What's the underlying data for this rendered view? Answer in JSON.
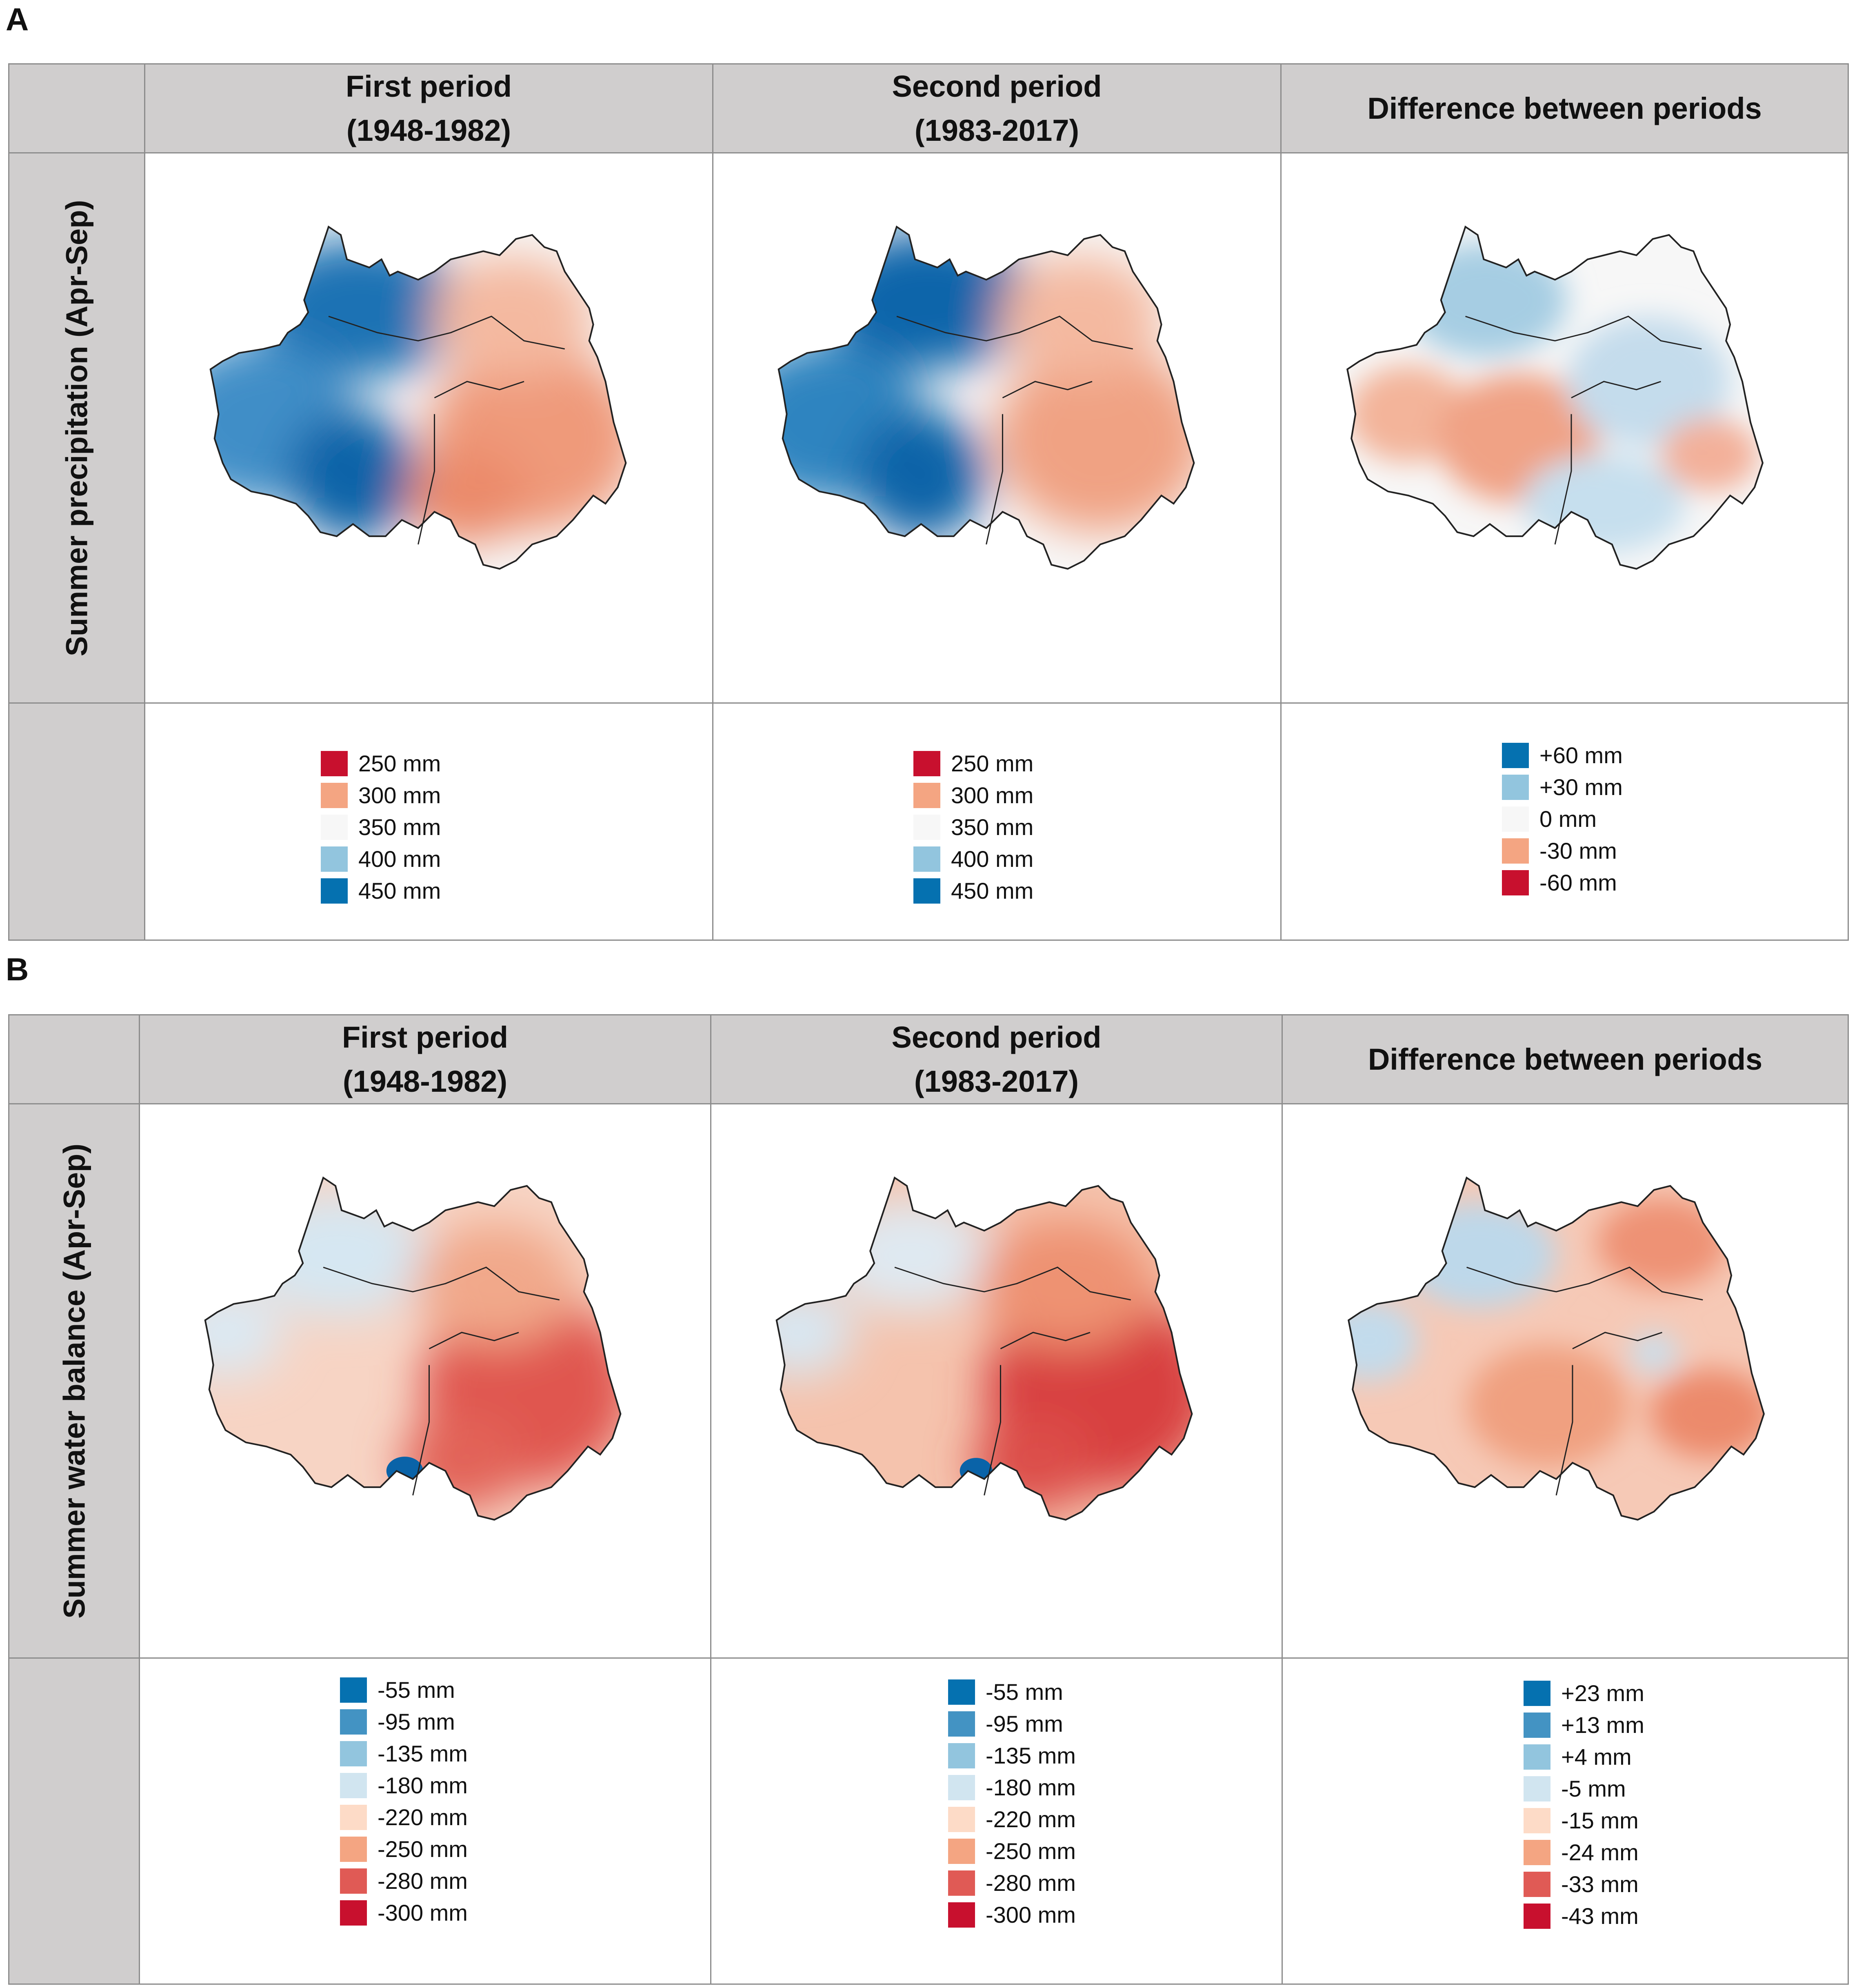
{
  "panel_a": {
    "letter": "A",
    "headers": {
      "first": [
        "First period",
        "(1948-1982)"
      ],
      "second": [
        "Second period",
        "(1983-2017)"
      ],
      "diff": "Difference between periods"
    },
    "row_label": "Summer precipitation (Apr-Sep)",
    "legend_first": [
      {
        "label": "250 mm",
        "color": "#c8102e"
      },
      {
        "label": "300 mm",
        "color": "#f4a582"
      },
      {
        "label": "350 mm",
        "color": "#f7f7f7"
      },
      {
        "label": "400 mm",
        "color": "#92c5de"
      },
      {
        "label": "450 mm",
        "color": "#0571b0"
      }
    ],
    "legend_second": [
      {
        "label": "250 mm",
        "color": "#c8102e"
      },
      {
        "label": "300 mm",
        "color": "#f4a582"
      },
      {
        "label": "350 mm",
        "color": "#f7f7f7"
      },
      {
        "label": "400 mm",
        "color": "#92c5de"
      },
      {
        "label": "450 mm",
        "color": "#0571b0"
      }
    ],
    "legend_diff": [
      {
        "label": "+60 mm",
        "color": "#0571b0"
      },
      {
        "label": "+30 mm",
        "color": "#92c5de"
      },
      {
        "label": "0 mm",
        "color": "#f7f7f7"
      },
      {
        "label": "-30 mm",
        "color": "#f4a582"
      },
      {
        "label": "-60 mm",
        "color": "#c8102e"
      }
    ]
  },
  "panel_b": {
    "letter": "B",
    "headers": {
      "first": [
        "First period",
        "(1948-1982)"
      ],
      "second": [
        "Second period",
        "(1983-2017)"
      ],
      "diff": "Difference between periods"
    },
    "row_label": "Summer water balance (Apr-Sep)",
    "legend_first": [
      {
        "label": "-55 mm",
        "color": "#0571b0"
      },
      {
        "label": "-95 mm",
        "color": "#4393c3"
      },
      {
        "label": "-135 mm",
        "color": "#92c5de"
      },
      {
        "label": "-180 mm",
        "color": "#d1e5f0"
      },
      {
        "label": "-220 mm",
        "color": "#fddbc7"
      },
      {
        "label": "-250 mm",
        "color": "#f4a582"
      },
      {
        "label": "-280 mm",
        "color": "#e05a55"
      },
      {
        "label": "-300 mm",
        "color": "#c8102e"
      }
    ],
    "legend_second": [
      {
        "label": "-55 mm",
        "color": "#0571b0"
      },
      {
        "label": "-95 mm",
        "color": "#4393c3"
      },
      {
        "label": "-135 mm",
        "color": "#92c5de"
      },
      {
        "label": "-180 mm",
        "color": "#d1e5f0"
      },
      {
        "label": "-220 mm",
        "color": "#fddbc7"
      },
      {
        "label": "-250 mm",
        "color": "#f4a582"
      },
      {
        "label": "-280 mm",
        "color": "#e05a55"
      },
      {
        "label": "-300 mm",
        "color": "#c8102e"
      }
    ],
    "legend_diff": [
      {
        "label": "+23 mm",
        "color": "#0571b0"
      },
      {
        "label": "+13 mm",
        "color": "#4393c3"
      },
      {
        "label": "+4 mm",
        "color": "#92c5de"
      },
      {
        "label": "-5 mm",
        "color": "#d1e5f0"
      },
      {
        "label": "-15 mm",
        "color": "#fddbc7"
      },
      {
        "label": "-24 mm",
        "color": "#f4a582"
      },
      {
        "label": "-33 mm",
        "color": "#e05a55"
      },
      {
        "label": "-43 mm",
        "color": "#c8102e"
      }
    ]
  }
}
